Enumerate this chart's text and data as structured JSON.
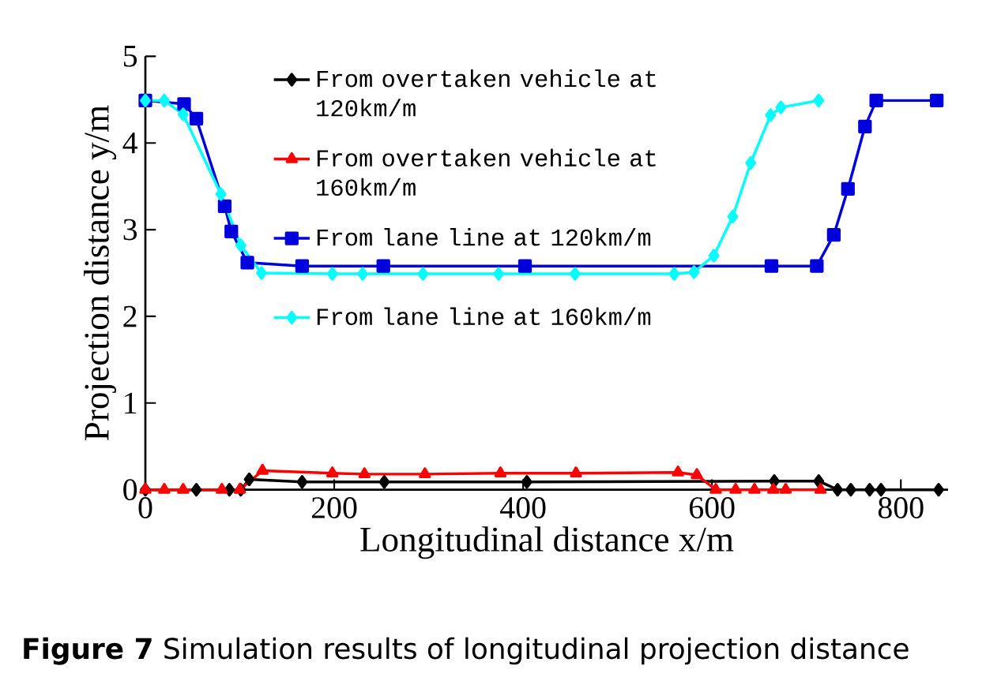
{
  "chart_data": {
    "type": "line",
    "xlabel": "Longitudinal distance x/m",
    "ylabel": "Projection distance y/m",
    "annotations": [
      "**Figure 7**  Simulation results of longitudinal projection distance"
    ],
    "xlim": [
      0,
      850
    ],
    "ylim": [
      0,
      5
    ],
    "xticks": [
      0,
      200,
      400,
      600,
      800
    ],
    "yticks": [
      0,
      1,
      2,
      3,
      4,
      5
    ],
    "grid": false,
    "legend": "top",
    "line_style": "solid",
    "series": [
      {
        "name": "From overtaken vehicle at 120km/m",
        "color": "#000000",
        "marker": "diamond",
        "x": [
          0,
          54,
          89,
          101,
          110,
          166,
          253,
          404,
          666,
          713,
          733,
          747,
          767,
          779,
          840
        ],
        "values": [
          0,
          0,
          0,
          0,
          0.12,
          0.09,
          0.09,
          0.09,
          0.1,
          0.1,
          0,
          0,
          0,
          0,
          0
        ]
      },
      {
        "name": "From overtaken vehicle at 160km/m",
        "color": "#ff0000",
        "marker": "triangle",
        "x": [
          0,
          20,
          40,
          81,
          100,
          124,
          198,
          232,
          296,
          376,
          456,
          564,
          584,
          604,
          625,
          645,
          665,
          678,
          715
        ],
        "values": [
          0,
          0,
          0,
          0,
          0,
          0.22,
          0.19,
          0.18,
          0.18,
          0.19,
          0.19,
          0.2,
          0.17,
          0,
          0,
          0,
          0,
          0,
          0
        ]
      },
      {
        "name": "From lane line at 120km/m",
        "color": "#0000dd",
        "marker": "square",
        "x": [
          0,
          41,
          54,
          84,
          91,
          108,
          166,
          252,
          402,
          663,
          711,
          729,
          744,
          762,
          774,
          838
        ],
        "values": [
          4.49,
          4.45,
          4.28,
          3.27,
          2.98,
          2.62,
          2.58,
          2.58,
          2.58,
          2.58,
          2.58,
          2.94,
          3.47,
          4.19,
          4.49,
          4.49
        ]
      },
      {
        "name": "From lane line at 160km/m",
        "color": "#00ffff",
        "marker": "diamond",
        "x": [
          0,
          20,
          40,
          80,
          101,
          123,
          198,
          230,
          294,
          374,
          455,
          560,
          581,
          602,
          622,
          641,
          662,
          673,
          713
        ],
        "values": [
          4.49,
          4.49,
          4.33,
          3.41,
          2.82,
          2.5,
          2.49,
          2.49,
          2.49,
          2.49,
          2.49,
          2.49,
          2.51,
          2.7,
          3.15,
          3.77,
          4.32,
          4.41,
          4.49
        ]
      }
    ]
  }
}
